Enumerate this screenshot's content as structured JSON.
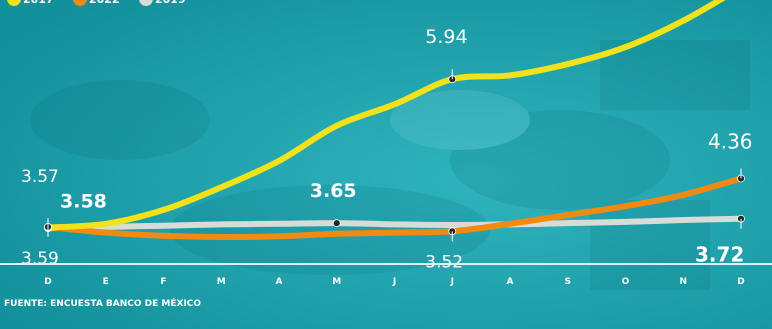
{
  "chart_data": {
    "type": "line",
    "categories": [
      "D",
      "E",
      "F",
      "M",
      "A",
      "M",
      "J",
      "J",
      "A",
      "S",
      "O",
      "N",
      "D"
    ],
    "series": [
      {
        "name": "2017",
        "color": "#f2e21a",
        "values": [
          3.58,
          3.64,
          3.86,
          4.22,
          4.64,
          5.2,
          5.54,
          5.94,
          6.0,
          6.18,
          6.45,
          6.87,
          7.4
        ]
      },
      {
        "name": "2022",
        "color": "#f08a12",
        "values": [
          3.59,
          3.5,
          3.45,
          3.43,
          3.44,
          3.48,
          3.5,
          3.52,
          3.64,
          3.78,
          3.92,
          4.1,
          4.36
        ]
      },
      {
        "name": "2019",
        "color": "#d8dcd6",
        "values": [
          3.57,
          3.59,
          3.61,
          3.63,
          3.64,
          3.65,
          3.63,
          3.62,
          3.63,
          3.65,
          3.67,
          3.7,
          3.72
        ]
      }
    ],
    "point_labels": [
      {
        "text": "3.57",
        "series": 2,
        "index": 0
      },
      {
        "text": "3.58",
        "series": 0,
        "index": 0
      },
      {
        "text": "3.59",
        "series": 1,
        "index": 0
      },
      {
        "text": "5.94",
        "series": 0,
        "index": 7
      },
      {
        "text": "3.65",
        "series": 2,
        "index": 5
      },
      {
        "text": "3.52",
        "series": 1,
        "index": 7
      },
      {
        "text": "4.36",
        "series": 1,
        "index": 12
      },
      {
        "text": "3.72",
        "series": 2,
        "index": 12
      }
    ],
    "ylim": [
      3.0,
      7.2
    ],
    "grid": false,
    "legend": "top-left",
    "source": "FUENTE: ENCUESTA BANCO DE MÉXICO"
  },
  "colors": {
    "background": "#19a2ae",
    "baseline": "#dff3f4"
  }
}
